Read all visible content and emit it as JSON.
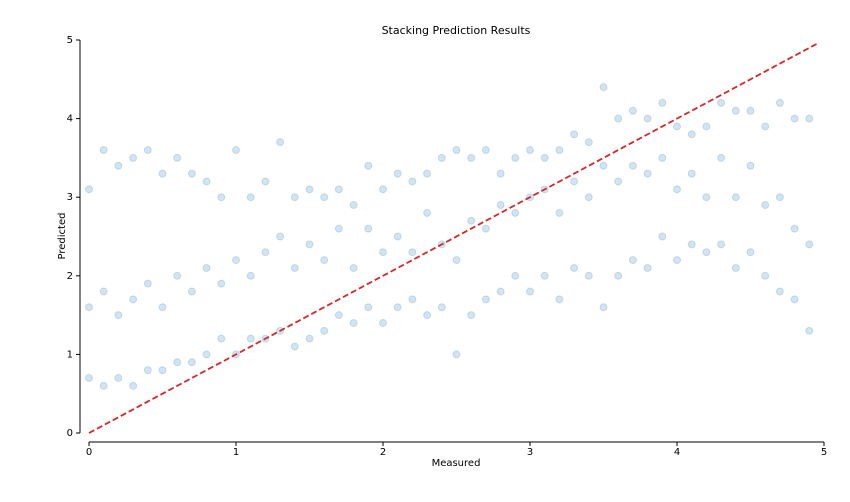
{
  "chart_data": {
    "type": "scatter",
    "title": "Stacking Prediction Results",
    "x_label": "Measured",
    "y_label": "Predicted",
    "xlim": [
      0,
      5
    ],
    "ylim": [
      0,
      5
    ],
    "xticks": [
      0,
      1,
      2,
      3,
      4,
      5
    ],
    "yticks": [
      0,
      1,
      2,
      3,
      4,
      5
    ],
    "grid": false,
    "alpha": 0.2,
    "series": [
      {
        "color": "#1f77b4",
        "x": [
          0.0,
          0.0,
          0.0,
          0.1,
          0.1,
          0.1,
          0.2,
          0.2,
          0.2,
          0.3,
          0.3,
          0.3,
          0.4,
          0.4,
          0.4,
          0.5,
          0.5,
          0.5,
          0.6,
          0.6,
          0.6,
          0.7,
          0.7,
          0.7,
          0.8,
          0.8,
          0.8,
          0.9,
          0.9,
          0.9,
          1.0,
          1.0,
          1.0,
          1.1,
          1.1,
          1.1,
          1.2,
          1.2,
          1.2,
          1.3,
          1.3,
          1.3,
          1.4,
          1.4,
          1.4,
          1.5,
          1.5,
          1.5,
          1.6,
          1.6,
          1.6,
          1.7,
          1.7,
          1.7,
          1.8,
          1.8,
          1.8,
          1.9,
          1.9,
          1.9,
          2.0,
          2.0,
          2.0,
          2.1,
          2.1,
          2.1,
          2.2,
          2.2,
          2.2,
          2.3,
          2.3,
          2.3,
          2.4,
          2.4,
          2.4,
          2.5,
          2.5,
          2.5,
          2.6,
          2.6,
          2.6,
          2.7,
          2.7,
          2.7,
          2.8,
          2.8,
          2.8,
          2.9,
          2.9,
          2.9,
          3.0,
          3.0,
          3.0,
          3.1,
          3.1,
          3.1,
          3.2,
          3.2,
          3.2,
          3.3,
          3.3,
          3.3,
          3.4,
          3.4,
          3.4,
          3.5,
          3.5,
          3.5,
          3.6,
          3.6,
          3.6,
          3.7,
          3.7,
          3.7,
          3.8,
          3.8,
          3.8,
          3.9,
          3.9,
          3.9,
          4.0,
          4.0,
          4.0,
          4.1,
          4.1,
          4.1,
          4.2,
          4.2,
          4.2,
          4.3,
          4.3,
          4.3,
          4.4,
          4.4,
          4.4,
          4.5,
          4.5,
          4.5,
          4.6,
          4.6,
          4.6,
          4.7,
          4.7,
          4.7,
          4.8,
          4.8,
          4.8,
          4.9,
          4.9,
          4.9
        ],
        "values": [
          0.7,
          1.6,
          3.1,
          0.6,
          1.8,
          3.6,
          0.7,
          1.5,
          3.4,
          0.6,
          1.7,
          3.5,
          0.8,
          1.9,
          3.6,
          0.8,
          1.6,
          3.3,
          0.9,
          2.0,
          3.5,
          0.9,
          1.8,
          3.3,
          1.0,
          2.1,
          3.2,
          1.2,
          1.9,
          3.0,
          1.0,
          2.2,
          3.6,
          1.2,
          2.0,
          3.0,
          1.2,
          2.3,
          3.2,
          1.3,
          2.5,
          3.7,
          1.1,
          2.1,
          3.0,
          1.2,
          2.4,
          3.1,
          1.3,
          2.2,
          3.0,
          1.5,
          2.6,
          3.1,
          1.4,
          2.1,
          2.9,
          1.6,
          2.6,
          3.4,
          1.4,
          2.3,
          3.1,
          1.6,
          2.5,
          3.3,
          1.7,
          2.3,
          3.2,
          1.5,
          2.8,
          3.3,
          1.6,
          2.4,
          3.5,
          1.0,
          2.2,
          3.6,
          1.5,
          2.7,
          3.5,
          1.7,
          2.6,
          3.6,
          1.8,
          2.9,
          3.3,
          2.0,
          2.8,
          3.5,
          1.8,
          3.0,
          3.6,
          2.0,
          3.1,
          3.5,
          1.7,
          2.8,
          3.6,
          2.1,
          3.2,
          3.8,
          2.0,
          3.0,
          3.7,
          1.6,
          3.4,
          4.4,
          2.0,
          3.2,
          4.0,
          2.2,
          3.4,
          4.1,
          2.1,
          3.3,
          4.0,
          2.5,
          3.5,
          4.2,
          2.2,
          3.1,
          3.9,
          2.4,
          3.3,
          3.8,
          2.3,
          3.0,
          3.9,
          2.4,
          3.5,
          4.2,
          2.1,
          3.0,
          4.1,
          2.3,
          3.4,
          4.1,
          2.0,
          2.9,
          3.9,
          1.8,
          3.0,
          4.2,
          1.7,
          2.6,
          4.0,
          1.3,
          2.4,
          4.0
        ]
      }
    ],
    "reference_line": {
      "x": [
        0,
        4.95
      ],
      "y": [
        0,
        4.95
      ],
      "color": "#d62728"
    }
  }
}
